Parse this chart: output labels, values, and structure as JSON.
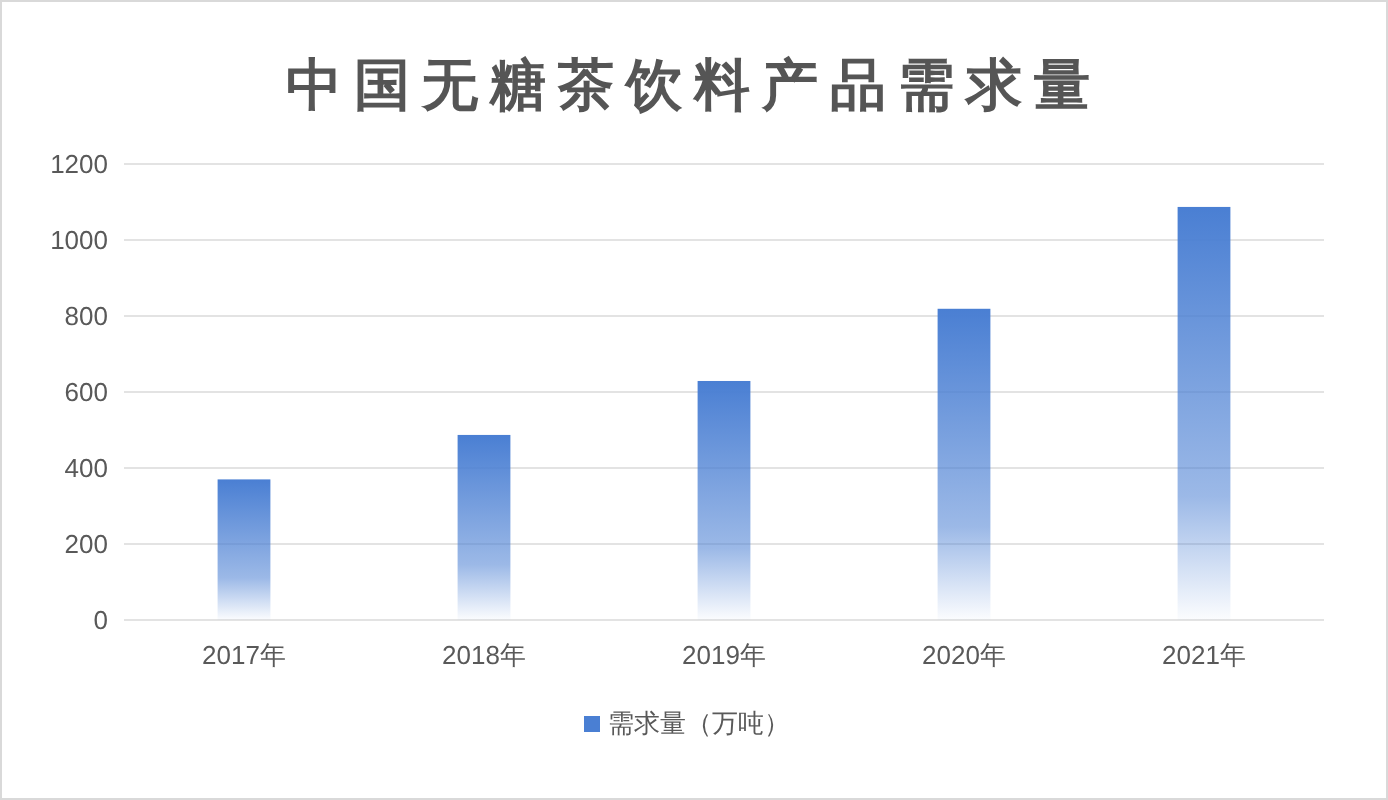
{
  "chart_data": {
    "type": "bar",
    "title": "中国无糖茶饮料产品需求量",
    "categories": [
      "2017年",
      "2018年",
      "2019年",
      "2020年",
      "2021年"
    ],
    "series": [
      {
        "name": "需求量（万吨）",
        "color": "#4a7fd3",
        "values": [
          370,
          487,
          629,
          819,
          1087
        ]
      }
    ],
    "ylim": [
      0,
      1200
    ],
    "yticks": [
      0,
      200,
      400,
      600,
      800,
      1000,
      1200
    ],
    "grid": "y",
    "legend": "bottom"
  }
}
